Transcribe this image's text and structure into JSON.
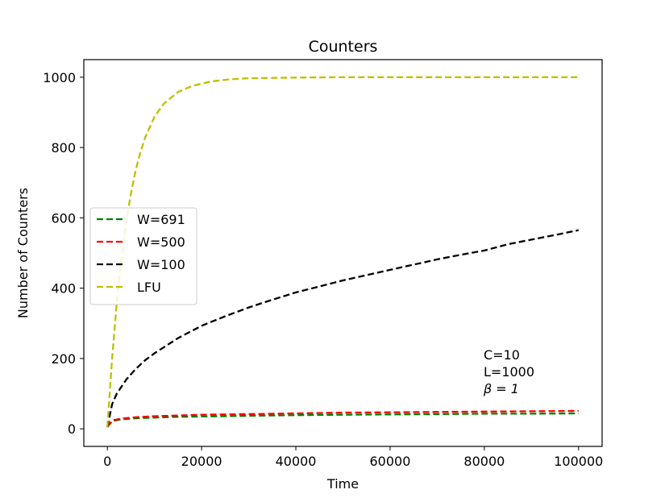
{
  "chart_data": {
    "type": "line",
    "title": "Counters",
    "xlabel": "Time",
    "ylabel": "Number of Counters",
    "xlim": [
      -5000,
      105000
    ],
    "ylim": [
      -50,
      1050
    ],
    "xticks": [
      0,
      20000,
      40000,
      60000,
      80000,
      100000
    ],
    "xtick_labels": [
      "0",
      "20000",
      "40000",
      "60000",
      "80000",
      "100000"
    ],
    "yticks": [
      0,
      200,
      400,
      600,
      800,
      1000
    ],
    "ytick_labels": [
      "0",
      "200",
      "400",
      "600",
      "800",
      "1000"
    ],
    "grid": false,
    "legend_position": "center-left",
    "annotations": [
      "C=10",
      "L=1000",
      "β = 1"
    ],
    "series": [
      {
        "name": "W=691",
        "color": "#008000",
        "style": "dashed",
        "x": [
          0,
          1000,
          3000,
          6000,
          10000,
          15000,
          20000,
          30000,
          40000,
          50000,
          60000,
          70000,
          80000,
          90000,
          100000
        ],
        "y": [
          5,
          22,
          27,
          30,
          32,
          34,
          35,
          37,
          39,
          40,
          41,
          42,
          43,
          43,
          44
        ]
      },
      {
        "name": "W=500",
        "color": "#ff0000",
        "style": "dashed",
        "x": [
          0,
          1000,
          3000,
          6000,
          10000,
          15000,
          20000,
          30000,
          40000,
          50000,
          60000,
          70000,
          80000,
          90000,
          100000
        ],
        "y": [
          5,
          24,
          29,
          33,
          36,
          38,
          40,
          42,
          44,
          46,
          47,
          48,
          49,
          50,
          51
        ]
      },
      {
        "name": "W=100",
        "color": "#000000",
        "style": "dashed",
        "x": [
          0,
          1000,
          2000,
          4000,
          6000,
          8000,
          10000,
          15000,
          20000,
          25000,
          30000,
          35000,
          40000,
          45000,
          50000,
          55000,
          60000,
          65000,
          70000,
          75000,
          80000,
          85000,
          90000,
          95000,
          100000
        ],
        "y": [
          5,
          70,
          100,
          140,
          170,
          195,
          215,
          258,
          293,
          320,
          345,
          367,
          388,
          405,
          422,
          437,
          452,
          467,
          482,
          495,
          507,
          525,
          538,
          551,
          565
        ]
      },
      {
        "name": "LFU",
        "color": "#bfbf00",
        "style": "dashed",
        "x": [
          0,
          1000,
          2000,
          3000,
          4000,
          5000,
          6000,
          7000,
          8000,
          10000,
          12000,
          15000,
          18000,
          22000,
          26000,
          30000,
          40000,
          50000,
          60000,
          70000,
          80000,
          90000,
          100000
        ],
        "y": [
          5,
          200,
          360,
          490,
          590,
          670,
          735,
          786,
          828,
          888,
          925,
          958,
          975,
          988,
          994,
          997,
          999,
          1000,
          1000,
          1000,
          1000,
          1000,
          1000
        ]
      }
    ]
  }
}
